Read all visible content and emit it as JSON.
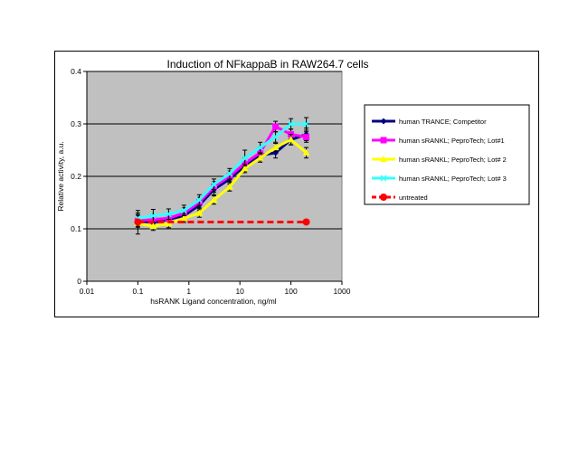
{
  "chart_data": {
    "type": "line",
    "title": "Induction of NFkappaB in RAW264.7 cells",
    "xlabel": "hsRANK Ligand concentration, ng/ml",
    "ylabel": "Relative activity, a.u.",
    "x_scale": "log",
    "xlim": [
      0.01,
      1000
    ],
    "ylim": [
      0,
      0.4
    ],
    "x_ticks": [
      "0.01",
      "0.1",
      "1",
      "10",
      "100",
      "1000"
    ],
    "y_ticks": [
      "0",
      "0.1",
      "0.2",
      "0.3",
      "0.4"
    ],
    "grid": "horizontal",
    "legend_position": "right",
    "series": [
      {
        "name": "human TRANCE; Competitor",
        "color": "#000080",
        "marker": "diamond",
        "x": [
          0.1,
          0.2,
          0.4,
          0.8,
          1.6,
          3.1,
          6.3,
          12.5,
          25,
          50,
          100,
          200
        ],
        "y": [
          0.115,
          0.112,
          0.118,
          0.125,
          0.145,
          0.175,
          0.195,
          0.22,
          0.24,
          0.245,
          0.27,
          0.28
        ],
        "err": [
          0.012,
          0.01,
          0.008,
          0.01,
          0.01,
          0.01,
          0.01,
          0.01,
          0.01,
          0.01,
          0.01,
          0.012
        ]
      },
      {
        "name": "human sRANKL; PeproTech; Lot#1",
        "color": "#ff00ff",
        "marker": "square",
        "x": [
          0.1,
          0.2,
          0.4,
          0.8,
          1.6,
          3.1,
          6.3,
          12.5,
          25,
          50,
          100,
          200
        ],
        "y": [
          0.115,
          0.118,
          0.12,
          0.13,
          0.15,
          0.18,
          0.2,
          0.225,
          0.245,
          0.295,
          0.28,
          0.275
        ],
        "err": [
          0.01,
          0.01,
          0.008,
          0.01,
          0.01,
          0.01,
          0.01,
          0.01,
          0.01,
          0.01,
          0.01,
          0.01
        ]
      },
      {
        "name": "human sRANKL; PeproTech; Lot# 2",
        "color": "#ffff00",
        "marker": "triangle",
        "x": [
          0.1,
          0.2,
          0.4,
          0.8,
          1.6,
          3.1,
          6.3,
          12.5,
          25,
          50,
          100,
          200
        ],
        "y": [
          0.11,
          0.105,
          0.11,
          0.12,
          0.13,
          0.155,
          0.18,
          0.215,
          0.235,
          0.255,
          0.27,
          0.245
        ],
        "err": [
          0.02,
          0.008,
          0.008,
          0.008,
          0.008,
          0.008,
          0.008,
          0.008,
          0.008,
          0.008,
          0.01,
          0.01
        ]
      },
      {
        "name": "human sRANKL; PeproTech; Lot# 3",
        "color": "#33ffff",
        "marker": "x",
        "x": [
          0.1,
          0.2,
          0.4,
          0.8,
          1.6,
          3.1,
          6.3,
          12.5,
          25,
          50,
          100,
          200
        ],
        "y": [
          0.12,
          0.125,
          0.128,
          0.135,
          0.155,
          0.185,
          0.205,
          0.235,
          0.255,
          0.275,
          0.3,
          0.3
        ],
        "err": [
          0.015,
          0.012,
          0.01,
          0.01,
          0.01,
          0.01,
          0.01,
          0.015,
          0.01,
          0.01,
          0.01,
          0.012
        ]
      },
      {
        "name": "untreated",
        "color": "#ff0000",
        "marker": "circle",
        "dashed": true,
        "x": [
          0.1,
          200
        ],
        "y": [
          0.113,
          0.113
        ]
      }
    ]
  }
}
